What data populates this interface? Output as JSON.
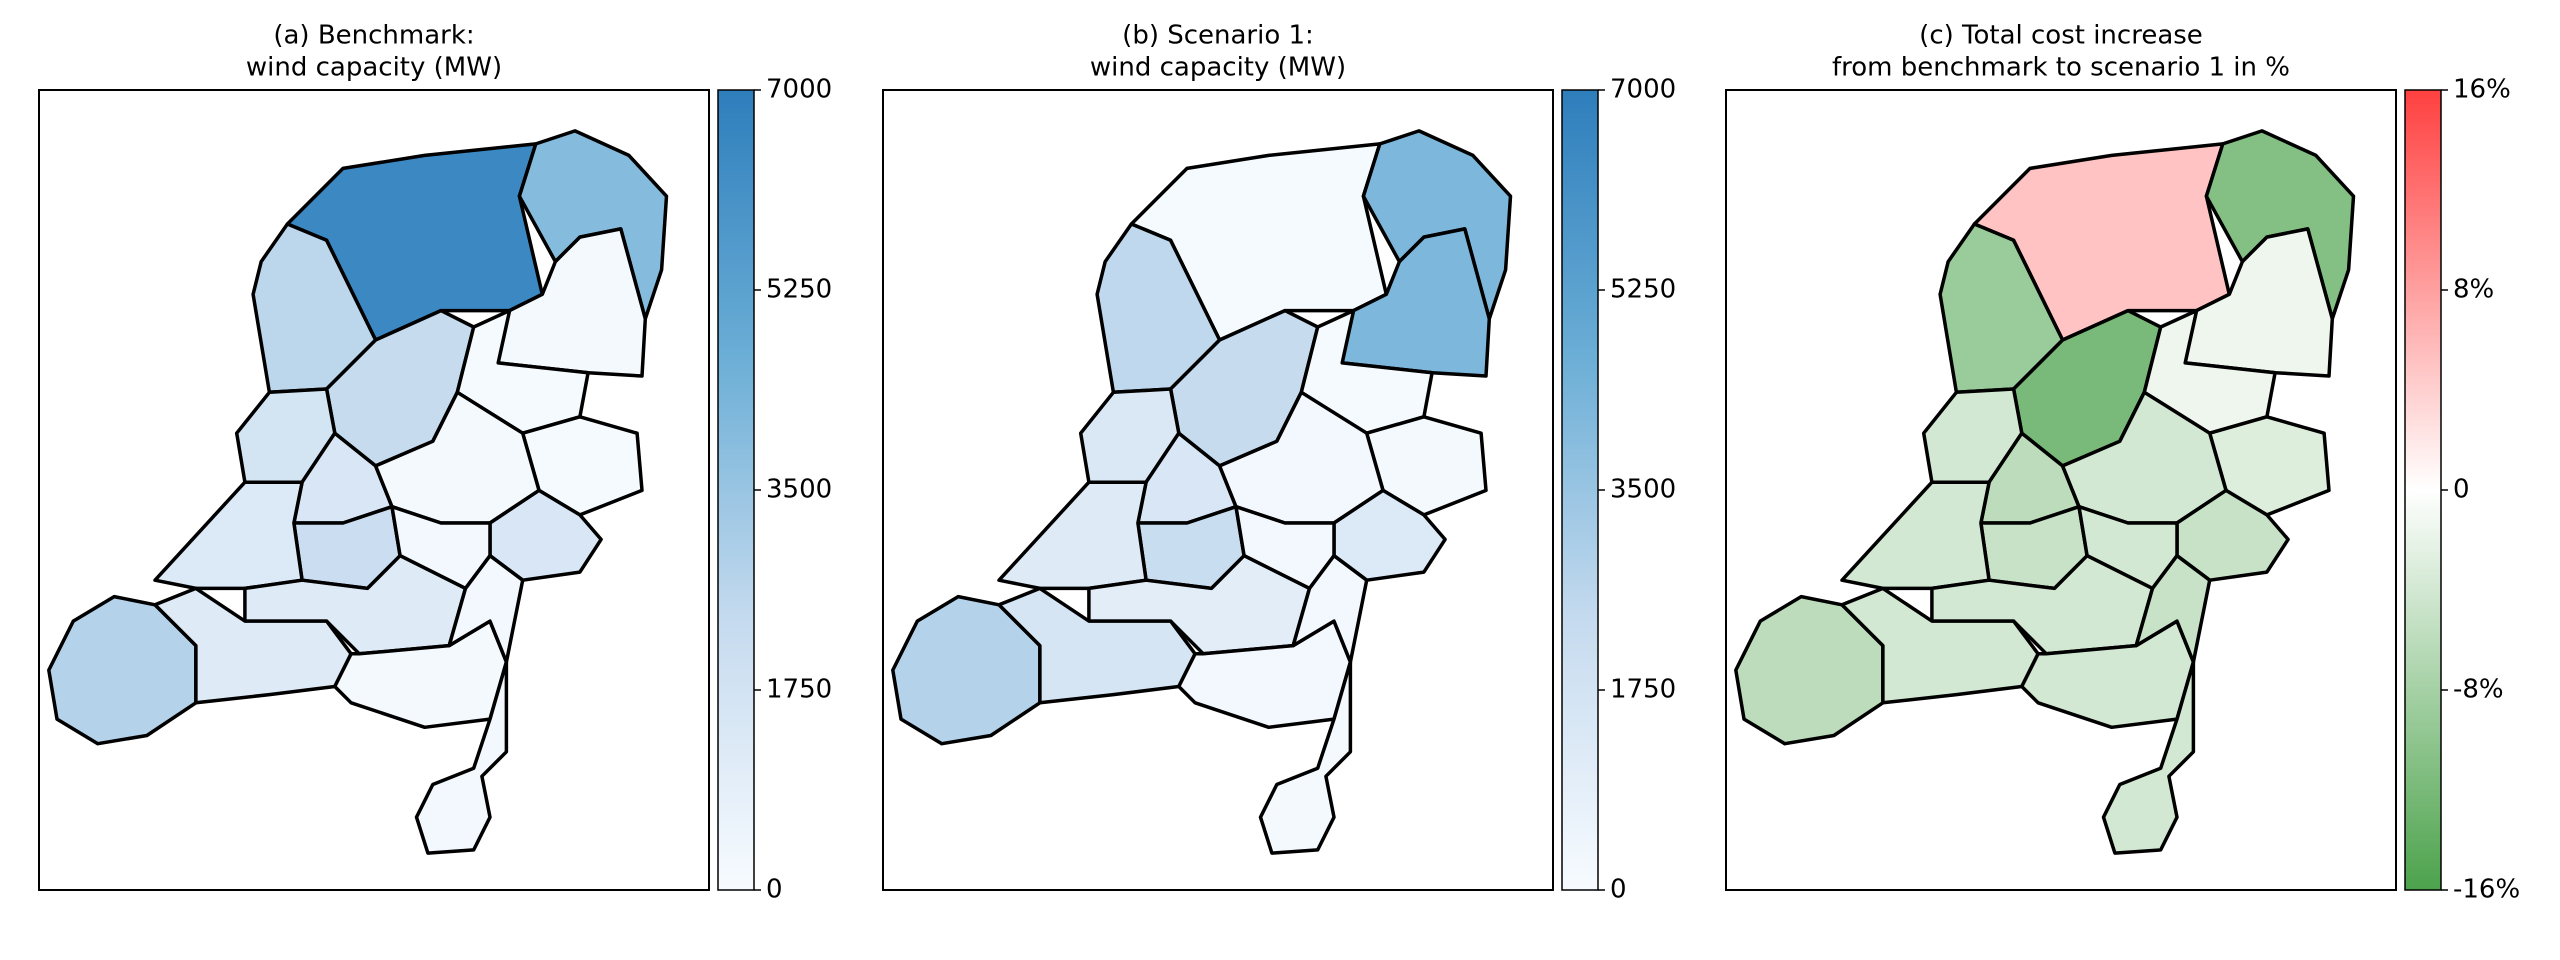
{
  "chart_data": [
    {
      "type": "choropleth",
      "title": [
        "(a) Benchmark:",
        "wind capacity (MW)"
      ],
      "values": [
        6500,
        4000,
        150,
        2600,
        2300,
        100,
        100,
        1700,
        1500,
        150,
        1500,
        2100,
        200,
        1300,
        1200,
        2800,
        1200,
        150,
        200,
        200
      ],
      "colors": [
        "#f7fbff",
        "#c6dbef",
        "#6baed6",
        "#2e7ebc"
      ],
      "ylim": [
        0,
        7000
      ],
      "yticks": [
        0,
        1750,
        3500,
        5250,
        7000
      ]
    },
    {
      "type": "choropleth",
      "title": [
        "(b) Scenario 1:",
        "wind capacity (MW)"
      ],
      "values": [
        100,
        4200,
        4200,
        2500,
        2300,
        100,
        150,
        1400,
        1500,
        200,
        1300,
        2200,
        200,
        1200,
        1000,
        2800,
        1600,
        200,
        200,
        150
      ],
      "colors": [
        "#f7fbff",
        "#c6dbef",
        "#6baed6",
        "#2e7ebc"
      ],
      "ylim": [
        0,
        7000
      ],
      "yticks": [
        0,
        1750,
        3500,
        5250,
        7000
      ]
    },
    {
      "type": "choropleth",
      "title": [
        "(c) Total cost increase",
        "from benchmark to scenario 1 in %"
      ],
      "values": [
        5,
        -11,
        -1.5,
        -9,
        -12,
        -1.5,
        -3,
        -4,
        -6,
        -4,
        -5,
        -5,
        -4,
        -4,
        -4,
        -6,
        -4,
        -4,
        -5,
        -4
      ],
      "colors": [
        "#4ca24c",
        "#ffffff",
        "#ff4040"
      ],
      "ylim": [
        -16,
        16
      ],
      "yticks": [
        {
          "value": -16,
          "label": "-16%"
        },
        {
          "value": -8,
          "label": "-8%"
        },
        0,
        {
          "value": 8,
          "label": "8%"
        },
        {
          "value": 16,
          "label": "16%"
        }
      ]
    }
  ]
}
